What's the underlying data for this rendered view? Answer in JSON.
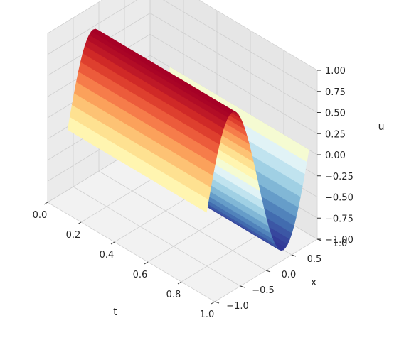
{
  "chart_data": {
    "type": "surface",
    "title": "",
    "xlabel": "t",
    "ylabel": "x",
    "zlabel": "u",
    "t_range": [
      0,
      1
    ],
    "x_range": [
      -1,
      1
    ],
    "u_range": [
      -1,
      1
    ],
    "t_ticks": [
      "0.0",
      "0.2",
      "0.4",
      "0.6",
      "0.8",
      "1.0"
    ],
    "x_ticks": [
      "−1.0",
      "−0.5",
      "0.0",
      "0.5",
      "1.0"
    ],
    "u_ticks": [
      "−1.00",
      "−0.75",
      "−0.50",
      "−0.25",
      "0.00",
      "0.25",
      "0.50",
      "0.75",
      "1.00"
    ],
    "surface": "u(t, x) = -sin(pi x), constant in t",
    "colormap": "RdYlBu",
    "grid": true
  }
}
